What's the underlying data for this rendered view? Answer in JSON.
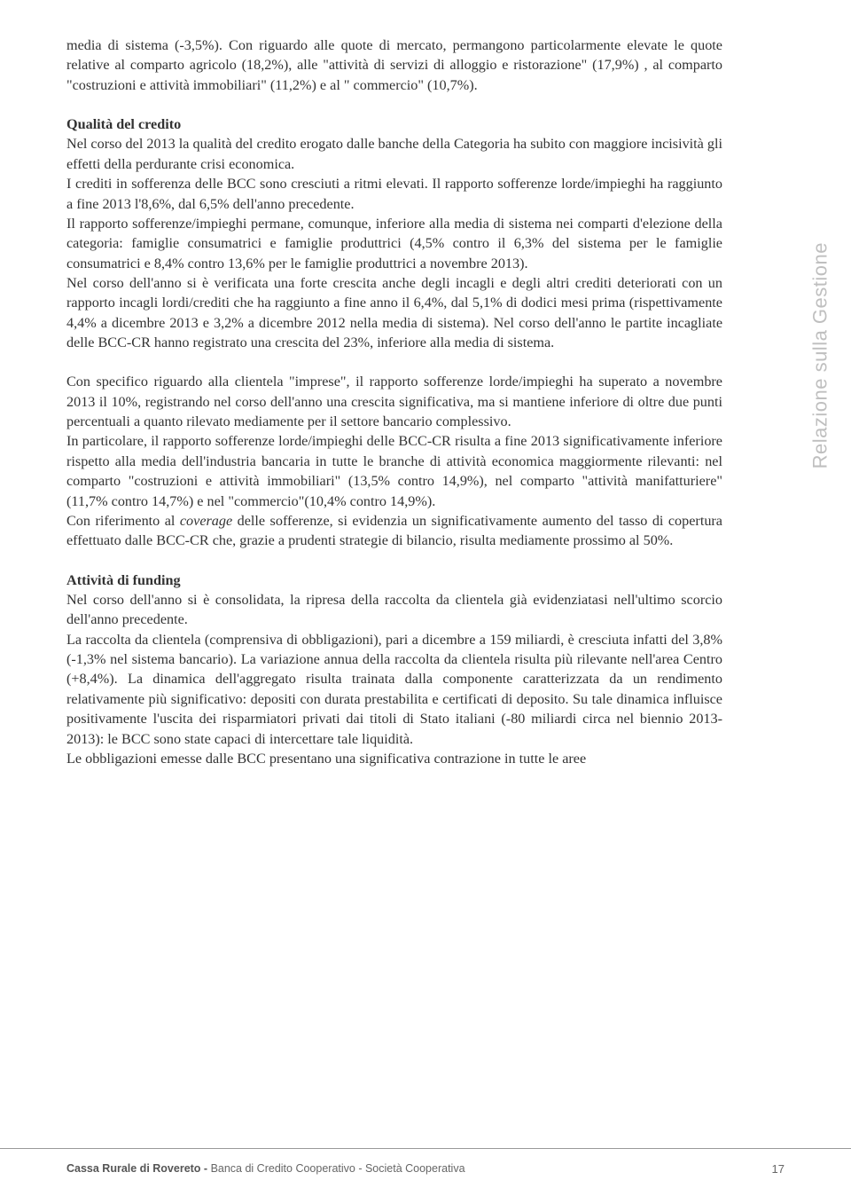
{
  "intro": {
    "p1": "media di sistema (-3,5%). Con riguardo alle quote di mercato, permangono particolarmente elevate le quote relative al comparto agricolo (18,2%), alle \"attività di servizi di alloggio e ristorazione\" (17,9%) , al comparto \"costruzioni e attività immobiliari\" (11,2%) e al \" commercio\" (10,7%)."
  },
  "qualita": {
    "heading": "Qualità del credito",
    "p1": "Nel corso del 2013 la qualità del credito erogato dalle banche della Categoria ha subito con maggiore incisività gli effetti della perdurante crisi economica.",
    "p2": "I crediti in sofferenza delle BCC sono cresciuti a ritmi elevati. Il rapporto sofferenze lorde/impieghi ha raggiunto a fine 2013 l'8,6%, dal 6,5% dell'anno precedente.",
    "p3": "Il rapporto sofferenze/impieghi permane, comunque, inferiore alla media di sistema nei comparti d'elezione della categoria: famiglie consumatrici e famiglie produttrici (4,5% contro il 6,3% del sistema per le famiglie consumatrici e 8,4% contro 13,6% per le famiglie produttrici a novembre 2013).",
    "p4": "Nel corso dell'anno si è verificata una forte crescita anche degli incagli e degli altri crediti deteriorati con un rapporto incagli lordi/crediti che ha raggiunto a fine anno il 6,4%, dal 5,1% di dodici mesi prima (rispettivamente 4,4% a dicembre 2013 e 3,2% a dicembre 2012 nella media di sistema). Nel corso dell'anno le partite incagliate delle BCC-CR hanno registrato una crescita del 23%, inferiore alla media di sistema."
  },
  "imprese": {
    "p1": "Con specifico riguardo alla clientela \"imprese\", il rapporto sofferenze lorde/impieghi ha superato a novembre 2013 il 10%, registrando nel corso dell'anno una crescita significativa, ma si mantiene inferiore di oltre due punti percentuali a quanto rilevato mediamente per il settore bancario complessivo.",
    "p2": "In particolare, il rapporto sofferenze lorde/impieghi delle BCC-CR risulta a fine 2013 significativamente inferiore rispetto alla media dell'industria bancaria in tutte le branche di attività economica maggiormente rilevanti: nel comparto \"costruzioni e attività immobiliari\" (13,5% contro 14,9%), nel comparto \"attività manifatturiere\" (11,7% contro 14,7%) e nel \"commercio\"(10,4% contro 14,9%).",
    "p3a": "Con riferimento al ",
    "p3i": "coverage",
    "p3b": " delle sofferenze, si evidenzia un significativamente aumento del tasso di copertura effettuato dalle BCC-CR che, grazie a prudenti strategie di bilancio, risulta mediamente prossimo al 50%."
  },
  "funding": {
    "heading": "Attività di funding",
    "p1": "Nel corso dell'anno si è consolidata, la ripresa della raccolta da clientela già evidenziatasi nell'ultimo scorcio dell'anno precedente.",
    "p2": "La raccolta da clientela (comprensiva di obbligazioni), pari a dicembre a 159 miliardi, è cresciuta infatti del 3,8% (-1,3% nel sistema bancario). La variazione annua della raccolta da clientela risulta più rilevante nell'area Centro (+8,4%). La dinamica dell'aggregato risulta trainata dalla componente caratterizzata da un rendimento relativamente più significativo: depositi con durata prestabilita e certificati di deposito. Su tale dinamica influisce positivamente l'uscita dei risparmiatori privati dai titoli di Stato italiani (-80 miliardi circa nel biennio 2013-2013): le BCC sono state capaci di intercettare tale liquidità.",
    "p3": "Le obbligazioni emesse dalle BCC presentano una significativa contrazione in tutte le aree"
  },
  "sidebar": "Relazione sulla Gestione",
  "footer": {
    "bold": "Cassa Rurale di Rovereto - ",
    "rest": "Banca di Credito Cooperativo - Società Cooperativa",
    "page": "17"
  }
}
